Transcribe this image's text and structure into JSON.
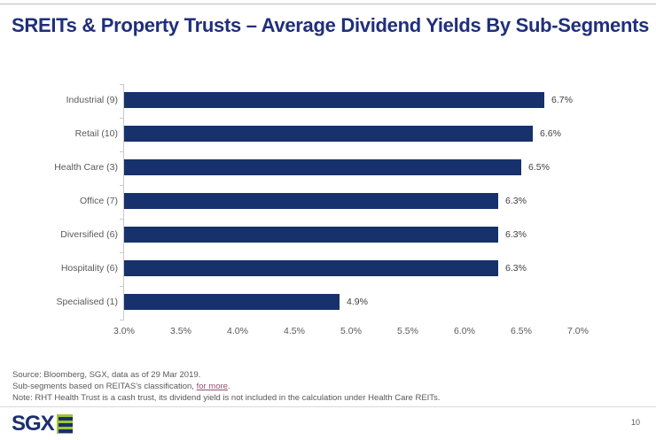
{
  "page": {
    "title": "SREITs & Property Trusts – Average Dividend Yields By Sub-Segments",
    "page_number": "10",
    "logo_text": "SGX"
  },
  "colors": {
    "title_navy": "#1f2f7b",
    "bar_navy": "#16316b",
    "axis_gray": "#c9c9c9",
    "label_gray": "#595959",
    "value_gray": "#404040",
    "link_purple": "#954f72",
    "logo_green": "#9dc43b",
    "logo_navy": "#1b2f6e"
  },
  "chart_data": {
    "type": "bar",
    "orientation": "horizontal",
    "title": "",
    "xlabel": "",
    "ylabel": "",
    "categories": [
      "Industrial (9)",
      "Retail (10)",
      "Health Care (3)",
      "Office (7)",
      "Diversified (6)",
      "Hospitality (6)",
      "Specialised (1)"
    ],
    "values": [
      6.7,
      6.6,
      6.5,
      6.3,
      6.3,
      6.3,
      4.9
    ],
    "value_labels": [
      "6.7%",
      "6.6%",
      "6.5%",
      "6.3%",
      "6.3%",
      "6.3%",
      "4.9%"
    ],
    "x_ticks": [
      "3.0%",
      "3.5%",
      "4.0%",
      "4.5%",
      "5.0%",
      "5.5%",
      "6.0%",
      "6.5%",
      "7.0%"
    ],
    "xlim": [
      3.0,
      7.0
    ],
    "grid": false,
    "legend": "none",
    "bar_color": "#16316b"
  },
  "footnotes": {
    "line1": "Source: Bloomberg, SGX, data as of 29 Mar 2019.",
    "line2_prefix": "Sub-segments based on REITAS's classification, ",
    "line2_link": "for more",
    "line2_suffix": ".",
    "line3": "Note: RHT Health Trust is a cash trust, its dividend yield is not included in the calculation under Health Care REITs."
  }
}
